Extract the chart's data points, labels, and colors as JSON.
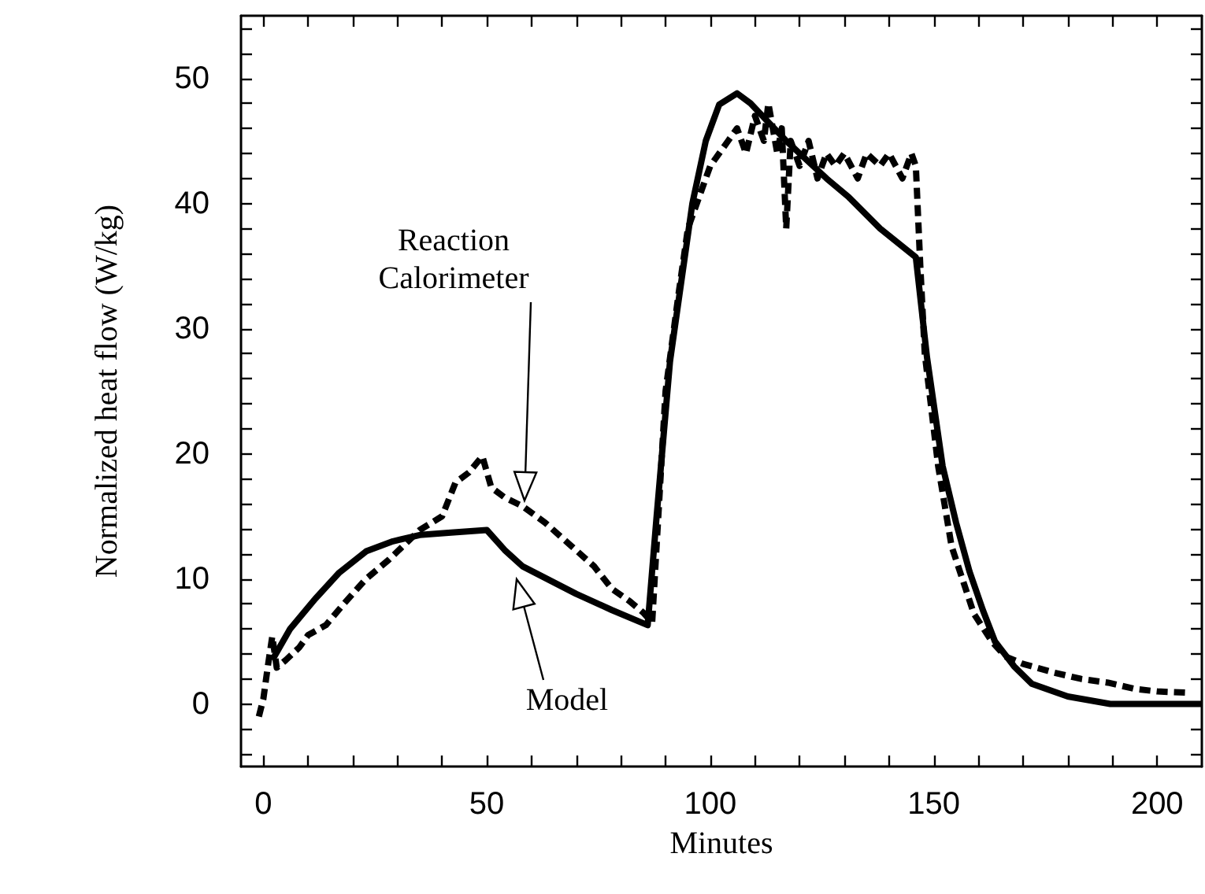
{
  "chart_data": {
    "type": "line",
    "xlabel": "Minutes",
    "ylabel": "Normalized heat flow (W/kg)",
    "xlim": [
      -5,
      210
    ],
    "ylim": [
      -5,
      55
    ],
    "xticks": [
      0,
      {
        "value": 10,
        "label": null
      },
      {
        "value": 20,
        "label": null
      },
      {
        "value": 30,
        "label": null
      },
      {
        "value": 40,
        "label": null
      },
      50,
      {
        "value": 60,
        "label": null
      },
      {
        "value": 70,
        "label": null
      },
      {
        "value": 80,
        "label": null
      },
      {
        "value": 90,
        "label": null
      },
      100,
      {
        "value": 110,
        "label": null
      },
      {
        "value": 120,
        "label": null
      },
      {
        "value": 130,
        "label": null
      },
      {
        "value": 140,
        "label": null
      },
      150,
      {
        "value": 160,
        "label": null
      },
      {
        "value": 170,
        "label": null
      },
      {
        "value": 180,
        "label": null
      },
      {
        "value": 190,
        "label": null
      },
      200
    ],
    "yticks": [
      {
        "value": -4,
        "label": null
      },
      {
        "value": -2,
        "label": null
      },
      0,
      {
        "value": 2,
        "label": null
      },
      {
        "value": 4,
        "label": null
      },
      {
        "value": 6,
        "label": null
      },
      {
        "value": 8,
        "label": null
      },
      10,
      {
        "value": 12,
        "label": null
      },
      {
        "value": 14,
        "label": null
      },
      {
        "value": 16,
        "label": null
      },
      {
        "value": 18,
        "label": null
      },
      20,
      {
        "value": 22,
        "label": null
      },
      {
        "value": 24,
        "label": null
      },
      {
        "value": 26,
        "label": null
      },
      {
        "value": 28,
        "label": null
      },
      30,
      {
        "value": 32,
        "label": null
      },
      {
        "value": 34,
        "label": null
      },
      {
        "value": 36,
        "label": null
      },
      {
        "value": 38,
        "label": null
      },
      40,
      {
        "value": 42,
        "label": null
      },
      {
        "value": 44,
        "label": null
      },
      {
        "value": 46,
        "label": null
      },
      {
        "value": 48,
        "label": null
      },
      50,
      {
        "value": 52,
        "label": null
      },
      {
        "value": 54,
        "label": null
      }
    ],
    "grid": false,
    "marker": "none",
    "series": [
      {
        "color": "#000000",
        "line_style": "dashed",
        "x": [
          -1,
          0,
          1,
          2,
          3,
          5,
          8,
          10,
          14,
          18,
          23,
          28,
          35,
          40,
          43,
          46,
          49,
          51,
          54,
          58,
          63,
          69,
          74,
          78,
          82,
          85,
          87,
          90,
          93,
          95,
          98,
          100,
          102,
          104,
          106,
          108,
          110,
          112,
          113,
          115,
          116,
          117,
          118,
          120,
          122,
          124,
          126,
          128,
          130,
          133,
          135,
          138,
          140,
          143,
          145,
          146,
          147,
          148,
          151,
          154,
          159,
          163,
          166,
          170,
          177,
          183,
          189,
          195,
          200,
          207
        ],
        "values": [
          -1,
          0.4,
          3,
          5.4,
          2.9,
          3.5,
          4.5,
          5.5,
          6.3,
          8,
          10,
          11.5,
          13.9,
          15,
          17.7,
          18.5,
          19.8,
          17.3,
          16.5,
          15.8,
          14.5,
          12.6,
          11,
          9.2,
          8.2,
          7.3,
          6.5,
          25,
          33,
          38,
          41,
          43,
          44,
          45,
          46,
          44,
          47,
          45,
          48,
          44,
          46,
          38,
          45,
          43,
          45,
          42,
          44,
          43,
          44,
          42,
          44,
          43,
          44,
          42,
          44,
          43,
          35,
          28,
          19,
          12.6,
          7.2,
          5,
          3.8,
          3.2,
          2.5,
          2,
          1.7,
          1.2,
          1,
          0.9
        ]
      },
      {
        "color": "#000000",
        "line_style": "solid",
        "x": [
          2,
          6,
          11.6,
          17,
          23,
          29,
          35,
          42,
          50,
          54,
          58,
          64,
          70,
          78,
          86,
          88,
          91,
          96,
          99,
          102,
          106,
          109,
          113,
          117,
          121.5,
          126,
          131,
          138,
          146,
          148.5,
          152,
          155,
          158,
          161,
          163.7,
          168,
          172,
          180,
          189.5,
          200,
          210
        ],
        "values": [
          3.5,
          6,
          8.4,
          10.5,
          12.2,
          13,
          13.5,
          13.7,
          13.9,
          12.3,
          11,
          9.9,
          8.8,
          7.5,
          6.3,
          15,
          27.4,
          40,
          45,
          47.9,
          48.8,
          48,
          46.5,
          45,
          43.5,
          42,
          40.5,
          38,
          35.7,
          27.7,
          19,
          14.5,
          10.6,
          7.5,
          5,
          3,
          1.6,
          0.6,
          0,
          0,
          0
        ]
      }
    ],
    "annotations": [
      "Reaction\nCalorimeter",
      "Model"
    ]
  }
}
